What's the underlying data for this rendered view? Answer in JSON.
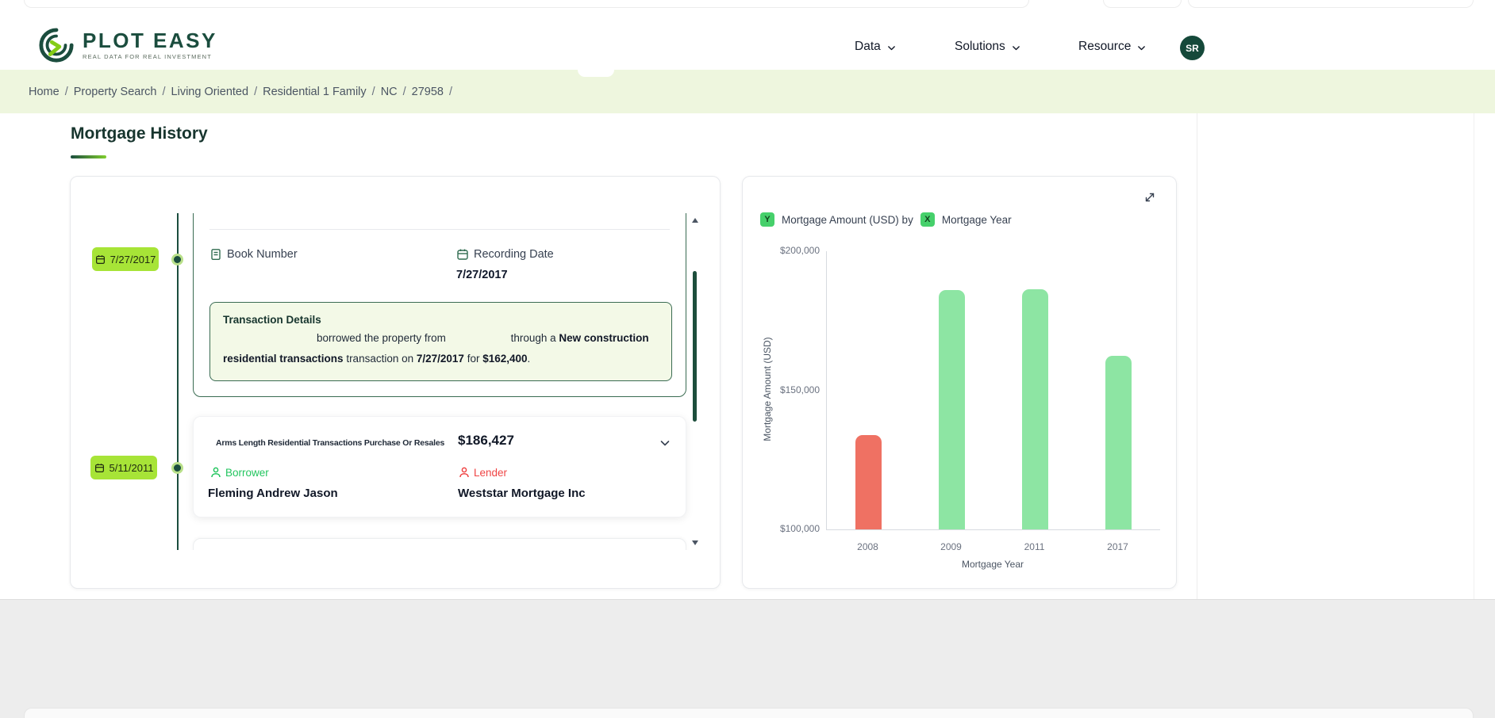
{
  "header": {
    "brand": {
      "name": "PLOT EASY",
      "tagline": "REAL DATA FOR REAL INVESTMENT"
    },
    "nav": [
      {
        "label": "Data"
      },
      {
        "label": "Solutions"
      },
      {
        "label": "Resource"
      }
    ],
    "avatar": "SR"
  },
  "breadcrumb": {
    "items": [
      "Home",
      "Property Search",
      "Living Oriented",
      "Residential 1 Family",
      "NC",
      "27958"
    ],
    "separator": "/"
  },
  "page": {
    "title": "Mortgage History"
  },
  "timeline": {
    "dates": [
      "7/27/2017",
      "5/11/2011"
    ],
    "record": {
      "book_number_label": "Book Number",
      "recording_date_label": "Recording Date",
      "recording_date_value": "7/27/2017",
      "details": {
        "title": "Transaction Details",
        "line1_text1": "borrowed the property from",
        "line1_text2": "through a ",
        "line1_bold": "New construction",
        "line2_bold1": "residential transactions",
        "line2_text1": " transaction on ",
        "line2_bold2": "7/27/2017",
        "line2_text2": " for ",
        "line2_bold3": "$162,400",
        "line2_end": "."
      }
    },
    "item": {
      "type": "Arms Length Residential Transactions Purchase Or Resales",
      "amount": "$186,427",
      "borrower_label": "Borrower",
      "borrower_name": "Fleming Andrew Jason",
      "lender_label": "Lender",
      "lender_name": "Weststar Mortgage Inc"
    }
  },
  "chart": {
    "legend": {
      "y_badge": "Y",
      "y_text": "Mortgage Amount (USD) by",
      "x_badge": "X",
      "x_text": "Mortgage Year"
    }
  },
  "chart_data": {
    "type": "bar",
    "title": "Mortgage Amount (USD) by Mortgage Year",
    "categories": [
      "2008",
      "2009",
      "2011",
      "2017"
    ],
    "values": [
      134000,
      186000,
      186427,
      162400
    ],
    "bar_colors": [
      "#ef7163",
      "#8de5a3",
      "#8de5a3",
      "#8de5a3"
    ],
    "xlabel": "Mortgage Year",
    "ylabel": "Mortgage Amount (USD)",
    "ylim": [
      100000,
      200000
    ],
    "yticks": [
      {
        "value": 100000,
        "label": "$100,000"
      },
      {
        "value": 150000,
        "label": "$150,000"
      },
      {
        "value": 200000,
        "label": "$200,000"
      }
    ],
    "grid": false,
    "legend_position": "top-left"
  },
  "colors": {
    "brand_dark_green": "#1b4d3e",
    "accent_lime": "#a7e437",
    "legend_badge_green": "#46d06b",
    "bar_green": "#8de5a3",
    "bar_red": "#ef7163",
    "borrower_green": "#22c55e",
    "lender_red": "#ef4444",
    "breadcrumb_bg": "#eef6de"
  }
}
